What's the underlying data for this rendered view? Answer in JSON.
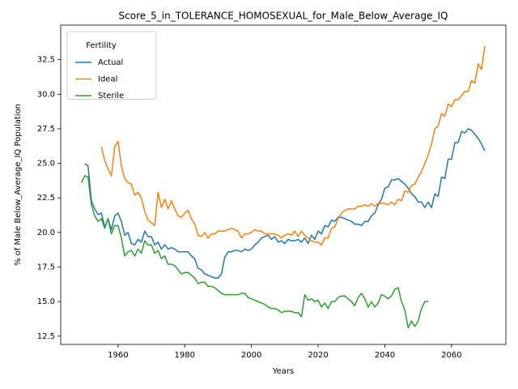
{
  "chart_data": {
    "type": "line",
    "title": "Score_5_in_TOLERANCE_HOMOSEXUAL_for_Male_Below_Average_IQ",
    "xlabel": "Years",
    "ylabel": "% of Male Below_Average_IQ Population",
    "legend_title": "Fertility",
    "legend": "upper left",
    "grid": false,
    "x": [
      1949,
      1950,
      1951,
      1952,
      1953,
      1954,
      1955,
      1956,
      1957,
      1958,
      1959,
      1960,
      1961,
      1962,
      1963,
      1964,
      1965,
      1966,
      1967,
      1968,
      1969,
      1970,
      1971,
      1972,
      1973,
      1974,
      1975,
      1976,
      1977,
      1978,
      1979,
      1980,
      1981,
      1982,
      1983,
      1984,
      1985,
      1986,
      1987,
      1988,
      1989,
      1990,
      1991,
      1992,
      1993,
      1994,
      1995,
      1996,
      1997,
      1998,
      1999,
      2000,
      2001,
      2002,
      2003,
      2004,
      2005,
      2006,
      2007,
      2008,
      2009,
      2010,
      2011,
      2012,
      2013,
      2014,
      2015,
      2016,
      2017,
      2018,
      2019,
      2020,
      2021,
      2022,
      2023,
      2024,
      2025,
      2026,
      2027,
      2028,
      2029,
      2030,
      2031,
      2032,
      2033,
      2034,
      2035,
      2036,
      2037,
      2038,
      2039,
      2040,
      2041,
      2042,
      2043,
      2044,
      2045,
      2046,
      2047,
      2048,
      2049,
      2050,
      2051,
      2052,
      2053,
      2054,
      2055,
      2056,
      2057,
      2058,
      2059,
      2060,
      2061,
      2062,
      2063,
      2064,
      2065,
      2066,
      2067,
      2068,
      2069,
      2070
    ],
    "series": [
      {
        "name": "Actual",
        "color": "#1f77b4",
        "values": [
          null,
          25.0,
          24.8,
          22.3,
          21.7,
          21.3,
          21.4,
          20.4,
          21.0,
          20.2,
          21.2,
          21.4,
          20.8,
          19.8,
          20.0,
          19.2,
          19.1,
          19.5,
          19.3,
          20.1,
          19.7,
          19.7,
          19.1,
          19.3,
          18.8,
          19.1,
          18.8,
          18.9,
          18.8,
          18.6,
          18.6,
          18.6,
          18.6,
          18.3,
          18.1,
          17.4,
          17.3,
          17.0,
          16.9,
          16.8,
          16.7,
          16.7,
          17.0,
          18.2,
          18.6,
          18.6,
          18.7,
          18.7,
          18.6,
          18.8,
          18.7,
          18.8,
          19.1,
          19.3,
          19.6,
          19.7,
          19.8,
          19.5,
          19.7,
          19.3,
          19.4,
          19.2,
          19.5,
          19.4,
          19.4,
          19.5,
          19.3,
          19.6,
          19.2,
          19.8,
          19.5,
          20.1,
          19.9,
          20.5,
          20.4,
          20.9,
          20.8,
          21.1,
          21.1,
          21.0,
          20.9,
          20.8,
          20.6,
          20.6,
          20.5,
          20.8,
          20.8,
          21.2,
          21.4,
          22.0,
          22.4,
          23.2,
          23.3,
          23.8,
          23.8,
          23.9,
          23.7,
          23.5,
          23.2,
          22.8,
          22.6,
          22.2,
          22.2,
          21.8,
          22.2,
          21.8,
          22.8,
          22.6,
          24.0,
          23.9,
          25.3,
          25.3,
          26.5,
          26.5,
          27.3,
          27.2,
          27.5,
          27.4,
          27.1,
          26.8,
          26.4,
          25.9
        ]
      },
      {
        "name": "Ideal",
        "color": "#ff7f0e",
        "values": [
          null,
          null,
          null,
          null,
          null,
          null,
          26.2,
          25.2,
          24.6,
          24.1,
          26.2,
          26.6,
          24.8,
          23.9,
          23.6,
          23.5,
          22.7,
          22.9,
          22.5,
          21.5,
          20.9,
          20.7,
          20.5,
          22.9,
          21.8,
          22.4,
          21.7,
          22.3,
          21.7,
          21.2,
          21.1,
          21.4,
          21.6,
          21.0,
          20.6,
          19.8,
          19.7,
          20.0,
          19.6,
          19.9,
          19.9,
          20.1,
          20.1,
          20.1,
          20.2,
          20.3,
          20.2,
          20.1,
          19.6,
          19.9,
          19.9,
          20.0,
          20.2,
          20.1,
          20.1,
          19.9,
          19.9,
          19.9,
          19.9,
          19.8,
          19.6,
          19.8,
          19.9,
          19.8,
          20.1,
          19.7,
          20.1,
          19.8,
          19.6,
          19.4,
          19.3,
          19.3,
          19.1,
          19.6,
          19.6,
          20.3,
          20.4,
          21.0,
          21.4,
          21.6,
          21.7,
          21.7,
          21.7,
          21.9,
          21.9,
          22.0,
          21.9,
          22.1,
          21.9,
          22.1,
          22.1,
          22.1,
          22.0,
          22.2,
          22.0,
          22.4,
          22.3,
          23.0,
          22.9,
          23.4,
          23.5,
          24.0,
          24.4,
          25.0,
          25.6,
          26.4,
          27.5,
          27.7,
          28.6,
          28.4,
          29.3,
          29.1,
          29.6,
          29.6,
          29.9,
          30.2,
          30.2,
          31.0,
          30.8,
          32.2,
          31.8,
          33.5
        ]
      },
      {
        "name": "Sterile",
        "color": "#2ca02c",
        "values": [
          23.6,
          24.1,
          24.0,
          22.0,
          21.2,
          20.8,
          21.0,
          20.3,
          21.0,
          19.9,
          20.5,
          20.5,
          19.6,
          18.3,
          18.6,
          18.7,
          18.3,
          18.8,
          18.5,
          19.4,
          19.1,
          19.1,
          18.5,
          18.7,
          18.1,
          18.3,
          17.7,
          17.7,
          17.6,
          17.3,
          17.0,
          17.1,
          17.1,
          16.9,
          16.7,
          16.3,
          16.4,
          16.4,
          16.1,
          16.1,
          16.0,
          15.8,
          15.6,
          15.5,
          15.5,
          15.5,
          15.5,
          15.5,
          15.6,
          15.6,
          15.3,
          15.2,
          15.1,
          15.0,
          14.9,
          14.8,
          14.6,
          14.5,
          14.5,
          14.4,
          14.2,
          14.3,
          14.3,
          14.3,
          14.2,
          14.2,
          13.9,
          15.5,
          15.1,
          15.2,
          15.0,
          15.1,
          14.6,
          14.9,
          14.5,
          15.0,
          15.0,
          15.3,
          15.4,
          15.4,
          15.2,
          15.0,
          14.7,
          15.3,
          15.6,
          15.2,
          14.6,
          15.0,
          14.6,
          14.9,
          15.5,
          15.4,
          15.2,
          15.4,
          15.9,
          16.0,
          15.0,
          14.4,
          13.1,
          13.6,
          13.2,
          13.6,
          14.5,
          15.0,
          15.0,
          null,
          null,
          null,
          null,
          null,
          null,
          null,
          null,
          null,
          null,
          null,
          null,
          null,
          null,
          null,
          null,
          null
        ]
      }
    ],
    "xlim": [
      1942.8,
      2076.3
    ],
    "xticks": [
      1960,
      1980,
      2000,
      2020,
      2040,
      2060
    ],
    "ylim": [
      11.9,
      35.0
    ],
    "yticks": [
      12.5,
      {
        "value": 15,
        "label": "15.0"
      },
      17.5,
      {
        "value": 20,
        "label": "20.0"
      },
      22.5,
      {
        "value": 25,
        "label": "25.0"
      },
      27.5,
      {
        "value": 30,
        "label": "30.0"
      },
      32.5
    ]
  }
}
